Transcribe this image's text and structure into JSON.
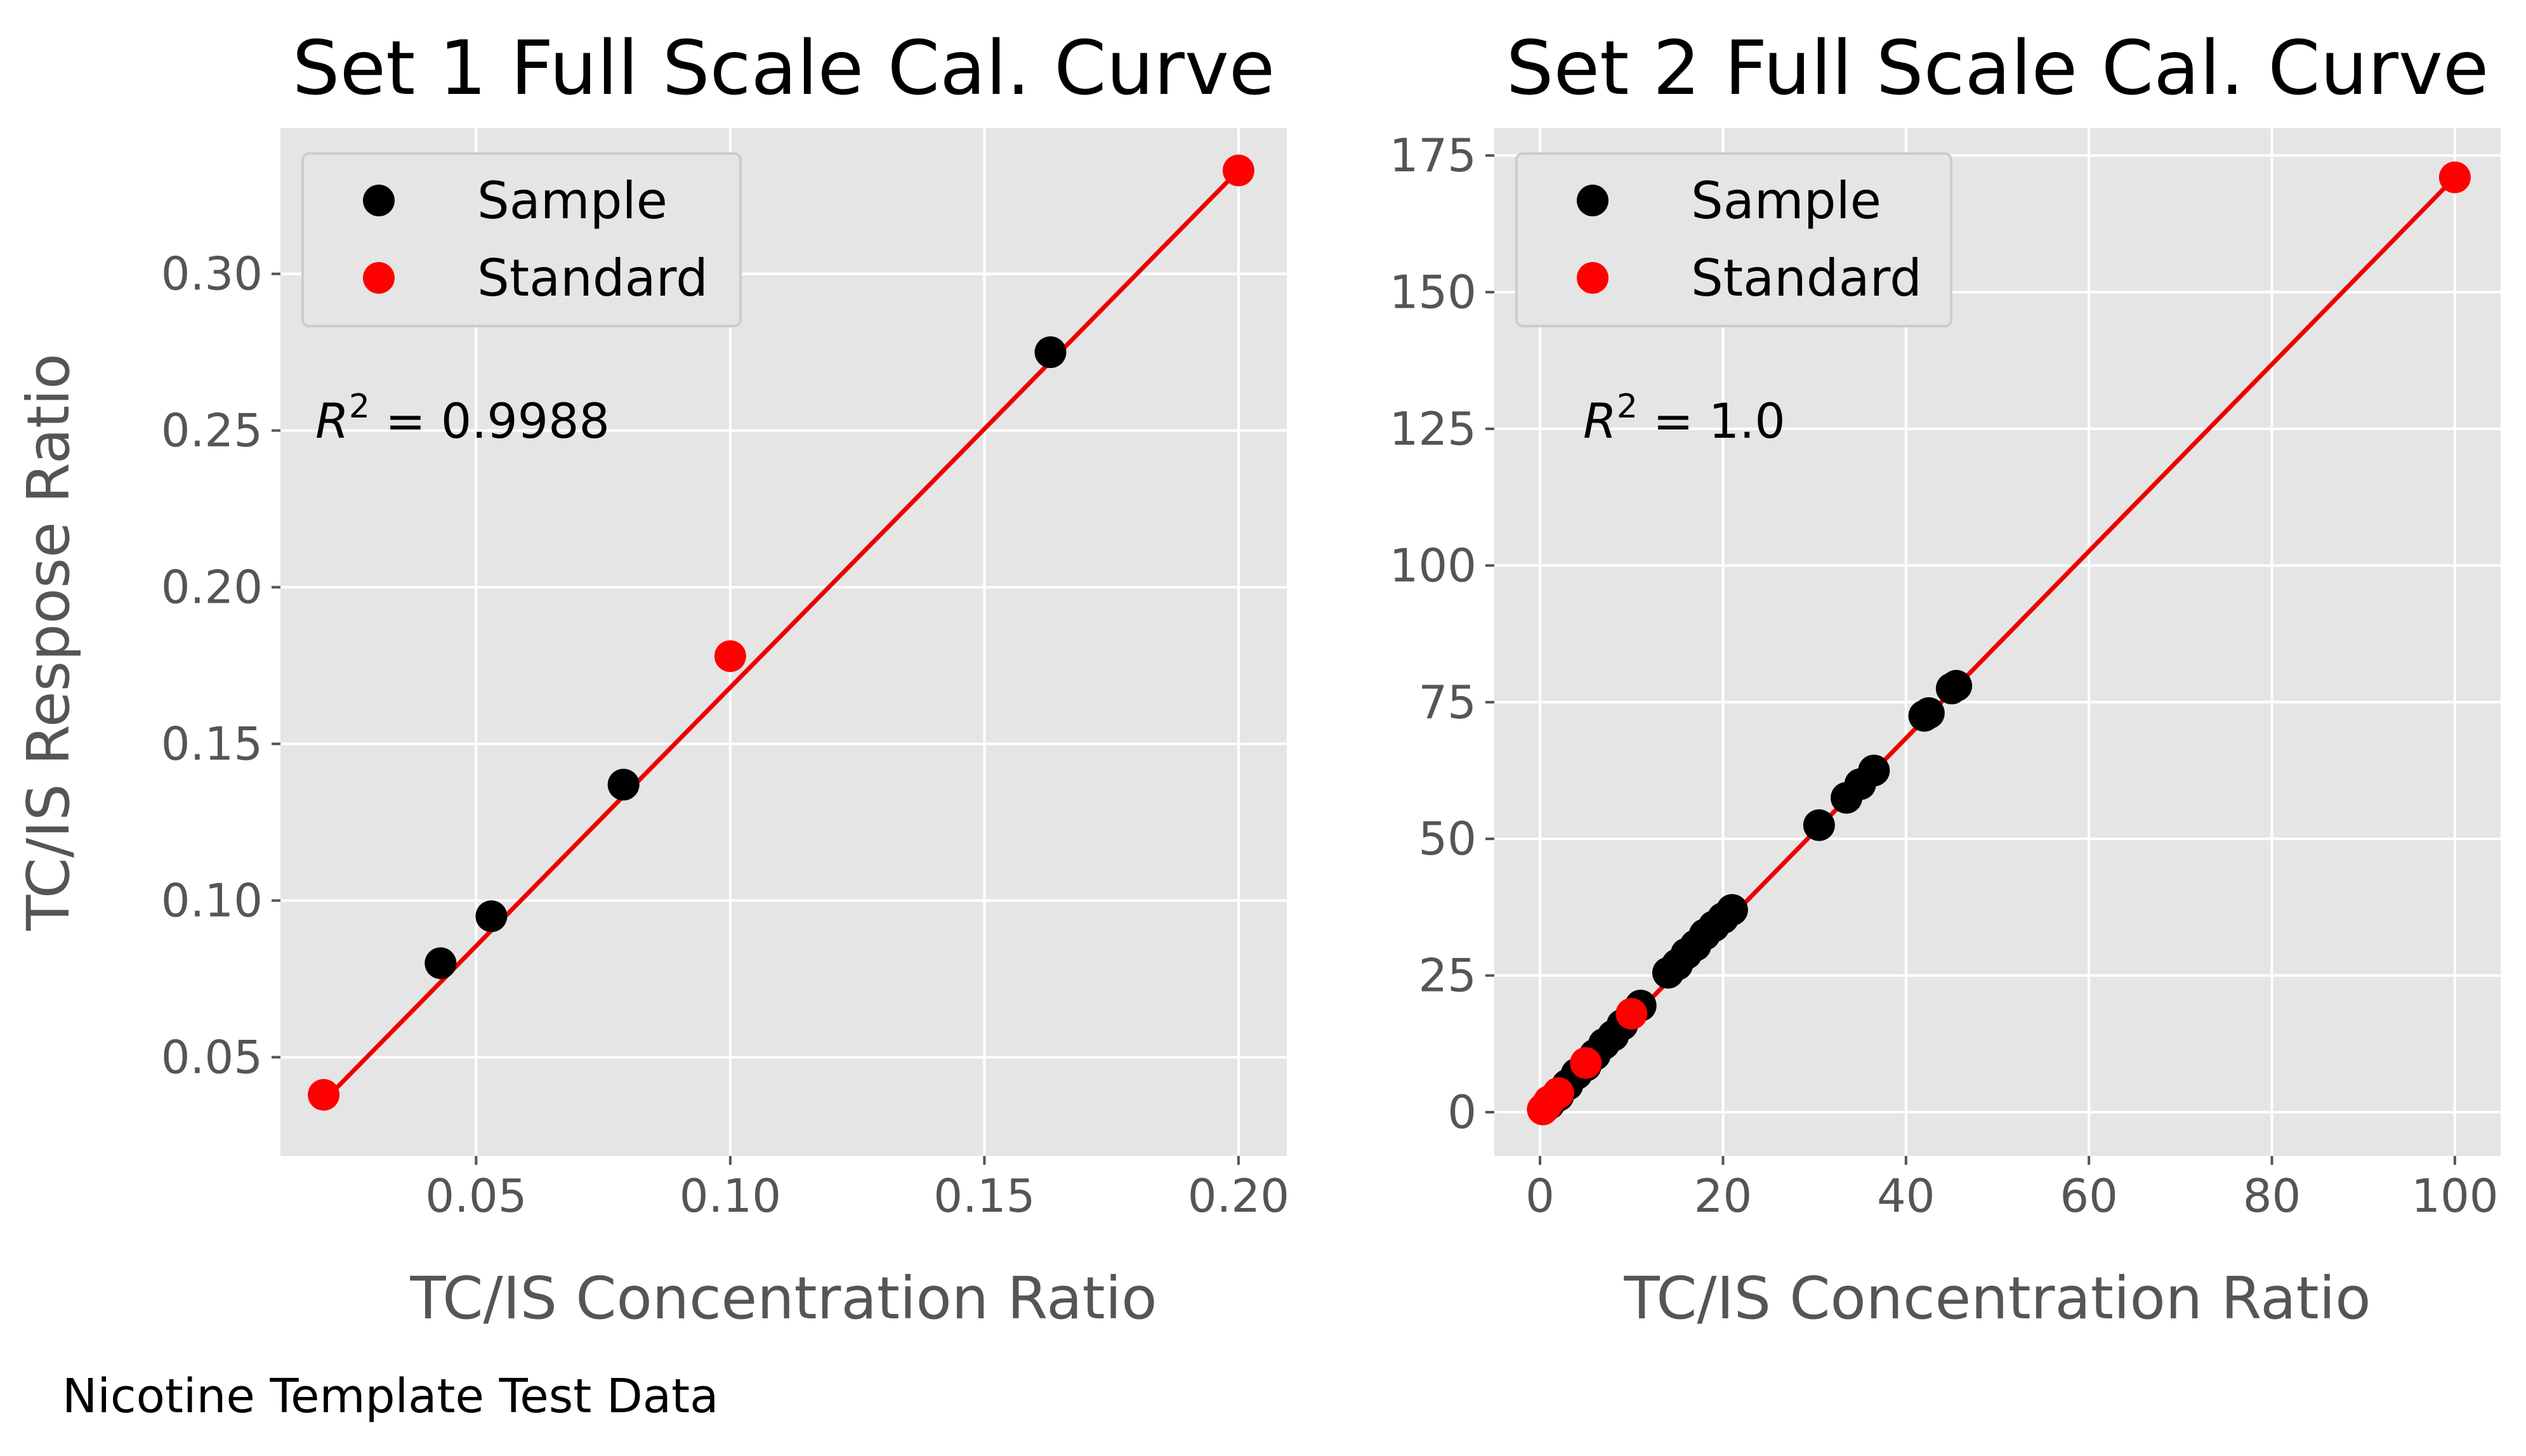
{
  "caption": "Nicotine Template Test Data",
  "colors": {
    "panel_bg": "#E5E5E5",
    "grid": "#FFFFFF",
    "sample": "#000000",
    "standard": "#FF0000",
    "fit_line": "#EE0000",
    "tick_text": "#555555"
  },
  "legend_labels": {
    "sample": "Sample",
    "standard": "Standard"
  },
  "chart_data": [
    {
      "type": "scatter",
      "title": "Set 1 Full Scale Cal. Curve",
      "xlabel": "TC/IS Concentration Ratio",
      "ylabel": "TC/IS Respose Ratio",
      "xlim": [
        0.0115,
        0.2095
      ],
      "ylim": [
        0.0185,
        0.3465
      ],
      "xticks": [
        0.05,
        0.1,
        0.15,
        0.2
      ],
      "xtick_labels": [
        "0.05",
        "0.10",
        "0.15",
        "0.20"
      ],
      "yticks": [
        0.05,
        0.1,
        0.15,
        0.2,
        0.25,
        0.3
      ],
      "ytick_labels": [
        "0.05",
        "0.10",
        "0.15",
        "0.20",
        "0.25",
        "0.30"
      ],
      "grid": true,
      "legend": "upper-left",
      "annotation": {
        "prefix": "R",
        "sup": "2",
        "suffix": " = 0.9988"
      },
      "series": [
        {
          "name": "Sample",
          "color": "#000000",
          "x": [
            0.043,
            0.053,
            0.079,
            0.163
          ],
          "y": [
            0.08,
            0.095,
            0.137,
            0.275
          ]
        },
        {
          "name": "Standard",
          "color": "#FF0000",
          "x": [
            0.02,
            0.1,
            0.2
          ],
          "y": [
            0.038,
            0.178,
            0.333
          ]
        }
      ],
      "fit_line": {
        "x": [
          0.02,
          0.2
        ],
        "y": [
          0.036,
          0.333
        ]
      }
    },
    {
      "type": "scatter",
      "title": "Set 2 Full Scale Cal. Curve",
      "xlabel": "TC/IS Concentration Ratio",
      "ylabel": "",
      "xlim": [
        -5,
        105
      ],
      "ylim": [
        -8,
        180
      ],
      "xticks": [
        0,
        20,
        40,
        60,
        80,
        100
      ],
      "xtick_labels": [
        "0",
        "20",
        "40",
        "60",
        "80",
        "100"
      ],
      "yticks": [
        0,
        25,
        50,
        75,
        100,
        125,
        150,
        175
      ],
      "ytick_labels": [
        "0",
        "25",
        "50",
        "75",
        "100",
        "125",
        "150",
        "175"
      ],
      "grid": true,
      "legend": "upper-left",
      "annotation": {
        "prefix": "R",
        "sup": "2",
        "suffix": " = 1.0"
      },
      "series": [
        {
          "name": "Sample",
          "color": "#000000",
          "x": [
            1,
            2,
            3,
            4,
            5,
            6,
            7,
            8,
            9,
            10,
            11,
            14,
            15,
            16,
            17,
            18,
            19,
            20,
            21,
            30.5,
            33.5,
            35,
            36.5,
            42,
            42.5,
            45,
            45.5
          ],
          "y": [
            1.5,
            3,
            5,
            7,
            8.5,
            10.5,
            12.5,
            14,
            16,
            18,
            19.5,
            25.5,
            27,
            29,
            30.5,
            32.5,
            34,
            35.5,
            37,
            52.5,
            57.5,
            60,
            62.5,
            72.5,
            73,
            77.5,
            78
          ]
        },
        {
          "name": "Standard",
          "color": "#FF0000",
          "x": [
            0.3,
            0.6,
            1,
            2,
            5,
            10,
            100
          ],
          "y": [
            0.5,
            1,
            2,
            3.5,
            9,
            18,
            171
          ]
        }
      ],
      "fit_line": {
        "x": [
          0,
          100
        ],
        "y": [
          0,
          171
        ]
      }
    }
  ]
}
